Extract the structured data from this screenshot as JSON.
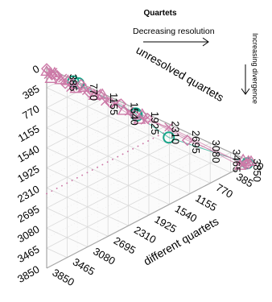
{
  "chart_data": {
    "type": "scatter",
    "title": "Quartets",
    "arrow_labels": {
      "top": "Decreasing resolution",
      "right": "Increasing divergence"
    },
    "axes": {
      "left": {
        "ticks": [
          "0",
          "385",
          "770",
          "1155",
          "1540",
          "1925",
          "2310",
          "2695",
          "3080",
          "3465",
          "3850"
        ]
      },
      "top": {
        "label": "unresolved quartets",
        "ticks": [
          "385",
          "770",
          "1155",
          "1540",
          "1925",
          "2310",
          "2695",
          "3080",
          "3465",
          "3850"
        ]
      },
      "right": {
        "label": "different quartets",
        "ticks": [
          "0",
          "385",
          "770",
          "1155",
          "1540",
          "1925",
          "2310",
          "2695",
          "3080",
          "3465",
          "3850"
        ]
      }
    },
    "total": 3850,
    "colors": {
      "pink": "#cc79a7",
      "green": "#17a589",
      "grid": "#d9d9d9",
      "axis": "#a6a6a6"
    },
    "series": [
      {
        "marker": "circle",
        "color": "#17a589",
        "points": [
          {
            "unresolved": 600,
            "different": 20
          },
          {
            "unresolved": 500,
            "different": 30
          },
          {
            "unresolved": 1680,
            "different": 90
          },
          {
            "unresolved": 1700,
            "different": 120
          },
          {
            "unresolved": 2300,
            "different": 260
          },
          {
            "unresolved": 3780,
            "different": 60
          }
        ]
      },
      {
        "marker": "triangle",
        "color": "#cc79a7",
        "points": [
          {
            "unresolved": 0,
            "different": 80
          },
          {
            "unresolved": 80,
            "different": 180
          },
          {
            "unresolved": 150,
            "different": 40
          },
          {
            "unresolved": 260,
            "different": 120
          },
          {
            "unresolved": 400,
            "different": 70
          },
          {
            "unresolved": 550,
            "different": 150
          },
          {
            "unresolved": 700,
            "different": 60
          },
          {
            "unresolved": 900,
            "different": 120
          },
          {
            "unresolved": 1050,
            "different": 30
          },
          {
            "unresolved": 1450,
            "different": 150
          },
          {
            "unresolved": 1750,
            "different": 180
          },
          {
            "unresolved": 1800,
            "different": 60
          },
          {
            "unresolved": 3650,
            "different": 170
          },
          {
            "unresolved": 3700,
            "different": 40
          },
          {
            "unresolved": 3800,
            "different": 20
          },
          {
            "unresolved": 3850,
            "different": 0
          }
        ]
      },
      {
        "marker": "diamond",
        "color": "#cc79a7",
        "points": [
          {
            "unresolved": 0,
            "different": 20
          },
          {
            "unresolved": 100,
            "different": 90
          },
          {
            "unresolved": 200,
            "different": 60
          },
          {
            "unresolved": 350,
            "different": 140
          },
          {
            "unresolved": 500,
            "different": 80
          },
          {
            "unresolved": 650,
            "different": 20
          },
          {
            "unresolved": 800,
            "different": 100
          },
          {
            "unresolved": 1000,
            "different": 60
          },
          {
            "unresolved": 1200,
            "different": 110
          },
          {
            "unresolved": 1400,
            "different": 40
          },
          {
            "unresolved": 1650,
            "different": 130
          },
          {
            "unresolved": 1900,
            "different": 80
          },
          {
            "unresolved": 2650,
            "different": 150
          },
          {
            "unresolved": 3750,
            "different": 90
          },
          {
            "unresolved": 3800,
            "different": 60
          }
        ]
      },
      {
        "marker": "cross",
        "color": "#cc79a7",
        "points": [
          {
            "unresolved": 30,
            "different": 120
          },
          {
            "unresolved": 120,
            "different": 30
          },
          {
            "unresolved": 300,
            "different": 60
          },
          {
            "unresolved": 450,
            "different": 170
          },
          {
            "unresolved": 750,
            "different": 90
          },
          {
            "unresolved": 950,
            "different": 40
          },
          {
            "unresolved": 1100,
            "different": 130
          },
          {
            "unresolved": 1300,
            "different": 80
          },
          {
            "unresolved": 1550,
            "different": 110
          },
          {
            "unresolved": 1850,
            "different": 140
          },
          {
            "unresolved": 2300,
            "different": 60
          },
          {
            "unresolved": 3700,
            "different": 110
          }
        ]
      }
    ],
    "dotted_line": {
      "color": "#cc79a7",
      "resolved_total": 1430
    }
  }
}
